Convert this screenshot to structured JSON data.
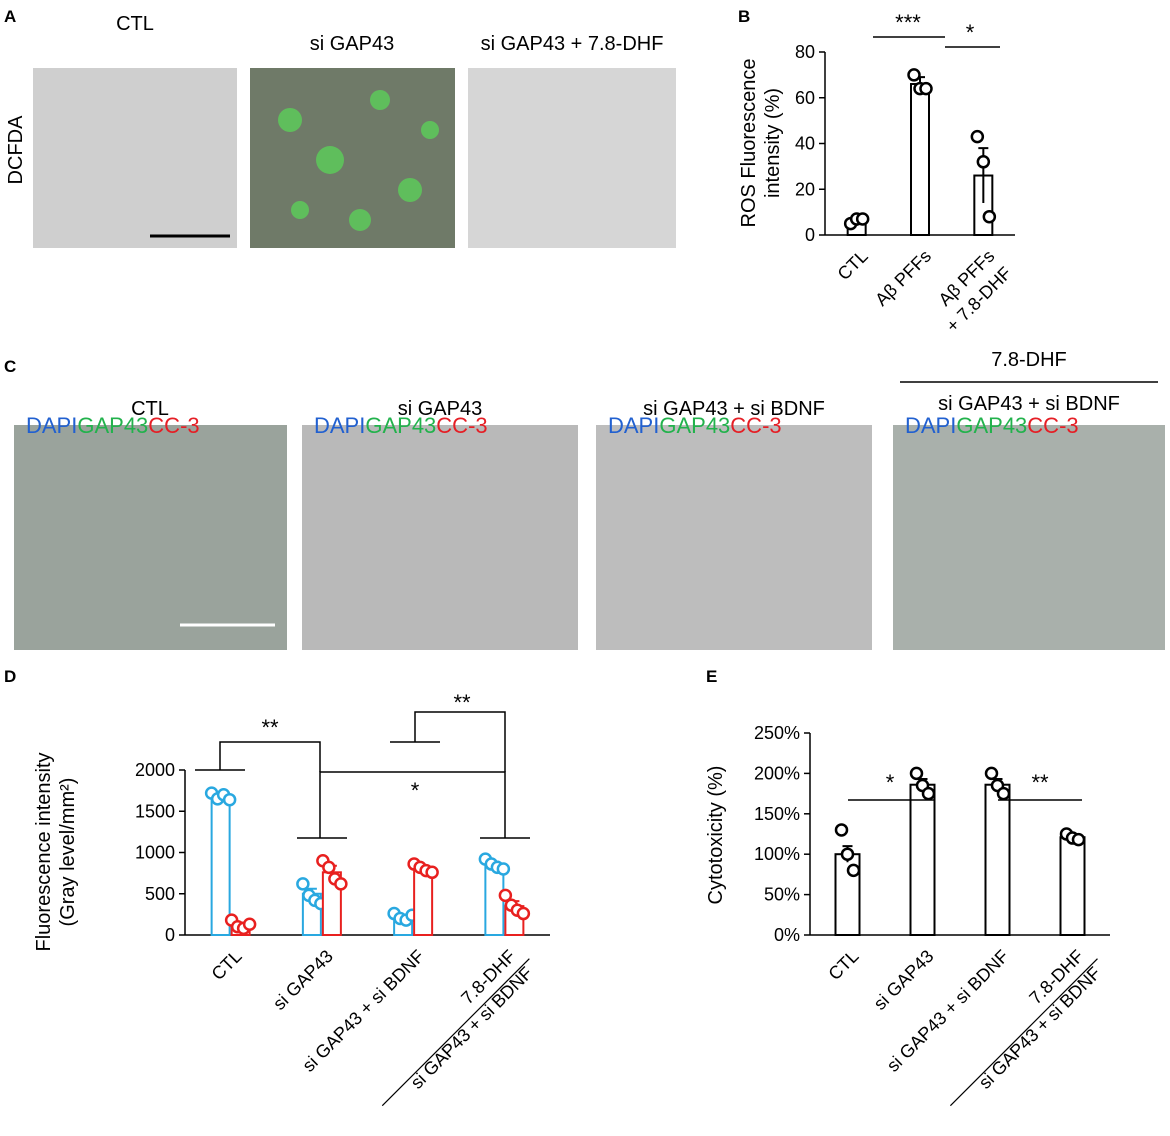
{
  "panel_letters": [
    "A",
    "B",
    "C",
    "D",
    "E"
  ],
  "panel_a": {
    "row_label": "DCFDA",
    "columns": [
      "CTL",
      "si GAP43",
      "si GAP43 + 7.8-DHF"
    ]
  },
  "panel_c": {
    "columns": [
      "CTL",
      "si GAP43",
      "si GAP43 + si BDNF",
      {
        "over": "7.8-DHF",
        "label": "si GAP43 + si BDNF"
      }
    ],
    "stain_labels": [
      {
        "text": "DAPI",
        "color": "#2160d0"
      },
      {
        "text": "GAP43",
        "color": "#22b24c"
      },
      {
        "text": "CC-3",
        "color": "#e51e25"
      }
    ]
  },
  "chart_data": [
    {
      "type": "bar",
      "ylabel": "ROS Fluorescence\nintensity (%)",
      "categories": [
        "CTL",
        "Aβ PFFs",
        "Aβ PFFs\n+ 7.8-DHF"
      ],
      "category_divider": false,
      "series": [
        {
          "color": "#000000",
          "values": [
            6,
            66,
            26
          ],
          "errors": [
            2,
            3,
            12
          ],
          "points": [
            [
              5,
              7,
              7
            ],
            [
              70,
              64,
              64
            ],
            [
              43,
              32,
              8
            ]
          ]
        }
      ],
      "ylim": [
        0,
        80
      ],
      "yticks": [
        0,
        20,
        40,
        60,
        80
      ],
      "annotations": [
        "***",
        "*"
      ]
    },
    {
      "type": "bar",
      "ylabel": "Fluorescence intensity\n(Gray level/mm²)",
      "categories": [
        "CTL",
        "si GAP43",
        "si GAP43 + si BDNF",
        "7.8-DHF\nsi GAP43 + si BDNF"
      ],
      "category_divider": true,
      "series": [
        {
          "color": "#29a8e0",
          "values": [
            1680,
            500,
            220,
            850
          ],
          "errors": [
            30,
            60,
            20,
            40
          ],
          "points": [
            [
              1720,
              1650,
              1700,
              1640
            ],
            [
              620,
              480,
              420,
              380
            ],
            [
              260,
              200,
              180,
              240
            ],
            [
              920,
              860,
              820,
              800
            ]
          ]
        },
        {
          "color": "#e8201f",
          "values": [
            120,
            760,
            800,
            350
          ],
          "errors": [
            30,
            80,
            30,
            60
          ],
          "points": [
            [
              180,
              100,
              80,
              130
            ],
            [
              900,
              820,
              680,
              620
            ],
            [
              860,
              820,
              780,
              760
            ],
            [
              480,
              360,
              300,
              260
            ]
          ]
        }
      ],
      "ylim": [
        0,
        2000
      ],
      "yticks": [
        0,
        500,
        1000,
        1500,
        2000
      ],
      "annotations": [
        "**",
        "*",
        "**"
      ]
    },
    {
      "type": "bar",
      "ylabel": "Cytotoxicity (%)",
      "categories": [
        "CTL",
        "si GAP43",
        "si GAP43 + si BDNF",
        "7.8-DHF\nsi GAP43 + si BDNF"
      ],
      "category_divider": true,
      "series": [
        {
          "color": "#000000",
          "values": [
            100,
            186,
            186,
            121
          ],
          "errors": [
            10,
            7,
            7,
            4
          ],
          "points": [
            [
              130,
              100,
              80
            ],
            [
              200,
              185,
              175
            ],
            [
              200,
              185,
              175
            ],
            [
              125,
              120,
              118
            ]
          ]
        }
      ],
      "ylim": [
        0,
        250
      ],
      "yticks": [
        {
          "value": 0,
          "label": "0%"
        },
        {
          "value": 50,
          "label": "50%"
        },
        {
          "value": 100,
          "label": "100%"
        },
        {
          "value": 150,
          "label": "150%"
        },
        {
          "value": 200,
          "label": "200%"
        },
        {
          "value": 250,
          "label": "250%"
        }
      ],
      "annotations": [
        "*",
        "**"
      ]
    }
  ]
}
